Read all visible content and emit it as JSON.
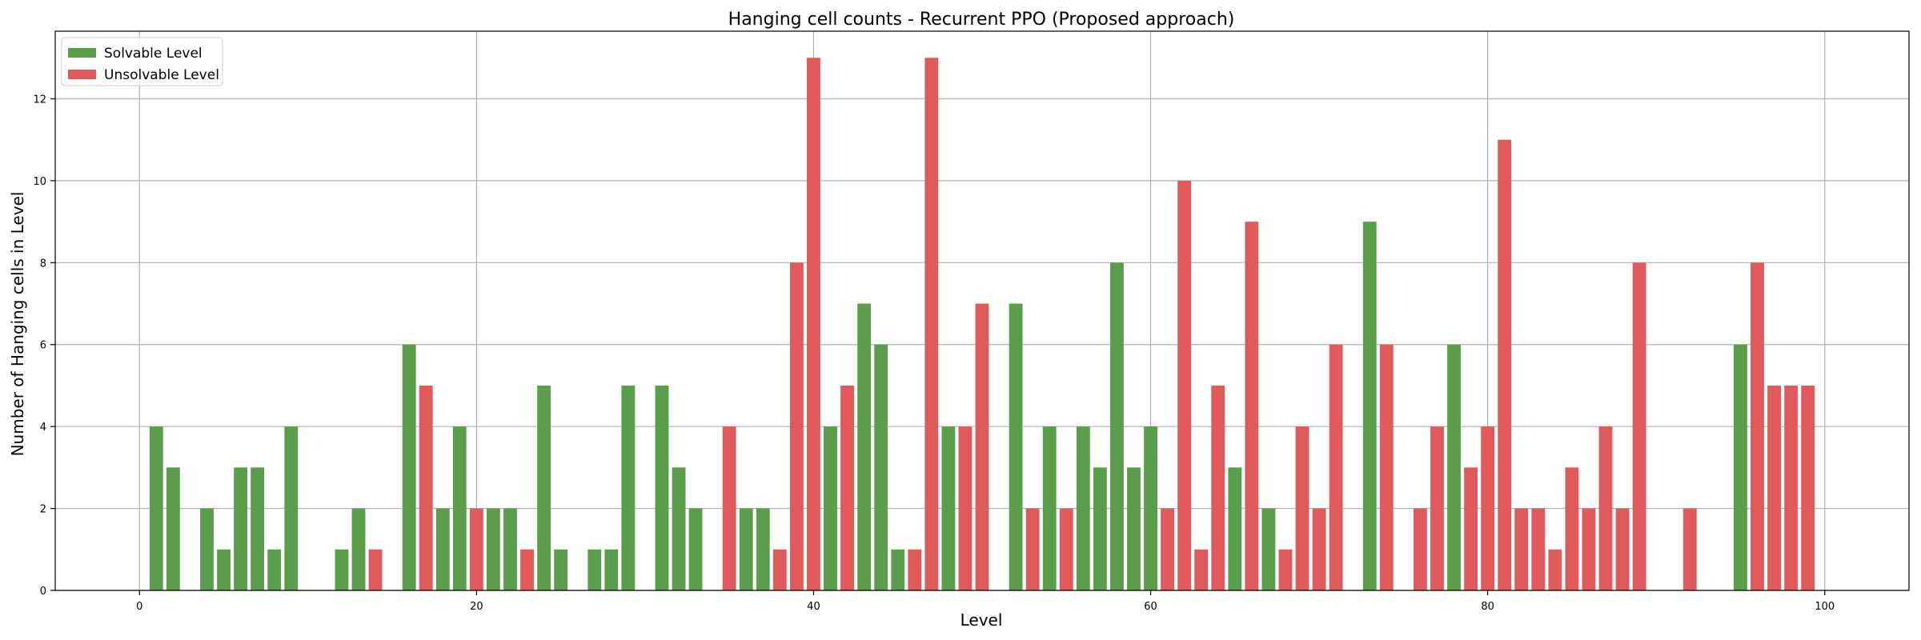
{
  "chart_data": {
    "type": "bar",
    "title": "Hanging cell counts - Recurrent PPO (Proposed approach)",
    "xlabel": "Level",
    "ylabel": "Number of Hanging cells in Level",
    "xlim": [
      -5,
      105
    ],
    "ylim": [
      0,
      13.65
    ],
    "xticks": [
      "0",
      "20",
      "40",
      "60",
      "80",
      "100"
    ],
    "yticks": [
      "0",
      "2",
      "4",
      "6",
      "8",
      "10",
      "12"
    ],
    "grid": true,
    "legend_position": "top-left",
    "colors": {
      "solvable": "#5a9e4b",
      "unsolvable": "#e05a5b"
    },
    "series": [
      {
        "name": "Solvable Level",
        "points": [
          [
            1,
            4
          ],
          [
            2,
            3
          ],
          [
            4,
            2
          ],
          [
            5,
            1
          ],
          [
            6,
            3
          ],
          [
            7,
            3
          ],
          [
            8,
            1
          ],
          [
            9,
            4
          ],
          [
            12,
            1
          ],
          [
            13,
            2
          ],
          [
            16,
            6
          ],
          [
            18,
            2
          ],
          [
            19,
            4
          ],
          [
            21,
            2
          ],
          [
            22,
            2
          ],
          [
            24,
            5
          ],
          [
            25,
            1
          ],
          [
            27,
            1
          ],
          [
            28,
            1
          ],
          [
            29,
            5
          ],
          [
            31,
            5
          ],
          [
            32,
            3
          ],
          [
            33,
            2
          ],
          [
            36,
            2
          ],
          [
            37,
            2
          ],
          [
            41,
            4
          ],
          [
            43,
            7
          ],
          [
            44,
            6
          ],
          [
            45,
            1
          ],
          [
            48,
            4
          ],
          [
            52,
            7
          ],
          [
            54,
            4
          ],
          [
            56,
            4
          ],
          [
            57,
            3
          ],
          [
            58,
            8
          ],
          [
            59,
            3
          ],
          [
            60,
            4
          ],
          [
            65,
            3
          ],
          [
            67,
            2
          ],
          [
            73,
            9
          ],
          [
            78,
            6
          ],
          [
            95,
            6
          ]
        ]
      },
      {
        "name": "Unsolvable Level",
        "points": [
          [
            14,
            1
          ],
          [
            17,
            5
          ],
          [
            20,
            2
          ],
          [
            23,
            1
          ],
          [
            35,
            4
          ],
          [
            38,
            1
          ],
          [
            39,
            8
          ],
          [
            40,
            13
          ],
          [
            42,
            5
          ],
          [
            46,
            1
          ],
          [
            47,
            13
          ],
          [
            49,
            4
          ],
          [
            50,
            7
          ],
          [
            53,
            2
          ],
          [
            55,
            2
          ],
          [
            61,
            2
          ],
          [
            62,
            10
          ],
          [
            63,
            1
          ],
          [
            64,
            5
          ],
          [
            66,
            9
          ],
          [
            68,
            1
          ],
          [
            69,
            4
          ],
          [
            70,
            2
          ],
          [
            71,
            6
          ],
          [
            74,
            6
          ],
          [
            76,
            2
          ],
          [
            77,
            4
          ],
          [
            79,
            3
          ],
          [
            80,
            4
          ],
          [
            81,
            11
          ],
          [
            82,
            2
          ],
          [
            83,
            2
          ],
          [
            84,
            1
          ],
          [
            85,
            3
          ],
          [
            86,
            2
          ],
          [
            87,
            4
          ],
          [
            88,
            2
          ],
          [
            89,
            8
          ],
          [
            92,
            2
          ],
          [
            96,
            8
          ],
          [
            97,
            5
          ],
          [
            98,
            5
          ],
          [
            99,
            5
          ]
        ]
      }
    ]
  }
}
